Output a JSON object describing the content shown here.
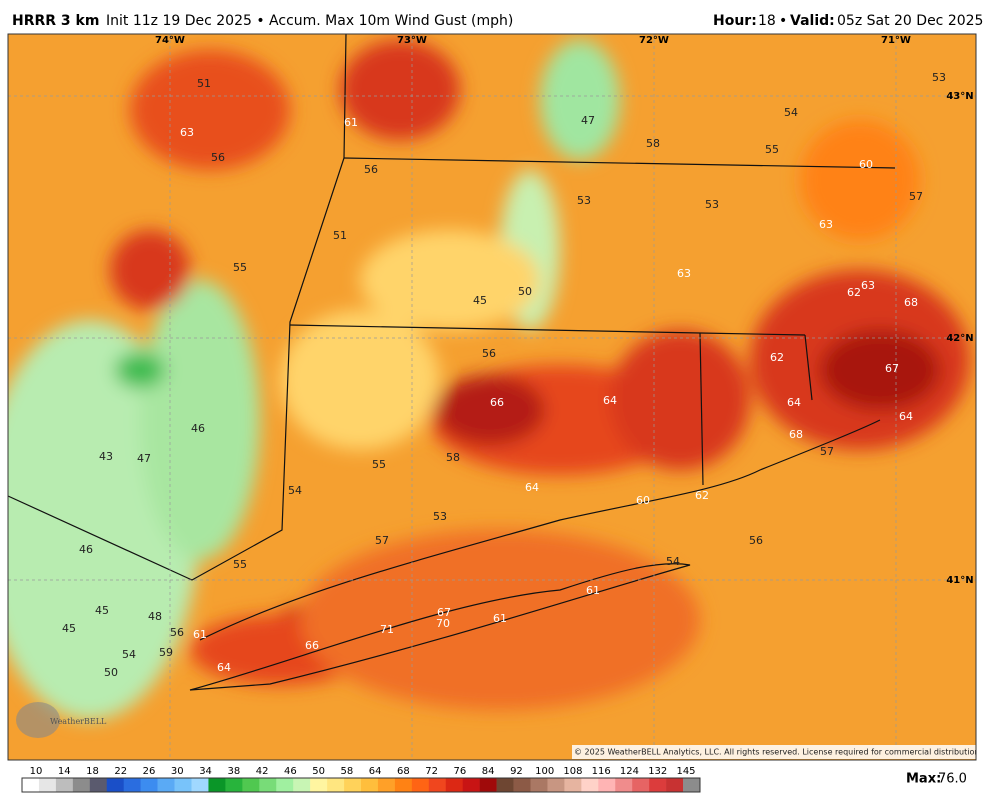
{
  "header": {
    "model": "HRRR 3 km",
    "description": "Init 11z 19 Dec 2025 • Accum. Max 10m Wind Gust (mph)",
    "hour_label": "Hour:",
    "hour": "18",
    "separator": "•",
    "valid_label": "Valid:",
    "valid": "05z Sat 20 Dec 2025"
  },
  "map": {
    "lon_labels": [
      "74°W",
      "73°W",
      "72°W",
      "71°W"
    ],
    "lat_labels": [
      "43°N",
      "42°N",
      "41°N"
    ],
    "stations": [
      51,
      63,
      56,
      61,
      56,
      51,
      55,
      47,
      58,
      54,
      55,
      60,
      53,
      57,
      53,
      53,
      63,
      63,
      62,
      63,
      68,
      45,
      50,
      56,
      62,
      67,
      66,
      64,
      64,
      64,
      68,
      57,
      46,
      43,
      47,
      58,
      55,
      54,
      64,
      60,
      62,
      53,
      57,
      56,
      46,
      55,
      54,
      61,
      45,
      48,
      45,
      67,
      70,
      61,
      71,
      56,
      61,
      66,
      59,
      54,
      64,
      50
    ],
    "copyright": "© 2025 WeatherBELL Analytics, LLC. All rights reserved. License required for commercial distribution.",
    "logo": "WeatherBELL"
  },
  "colorbar": {
    "labels": [
      "10",
      "14",
      "18",
      "22",
      "26",
      "30",
      "34",
      "38",
      "42",
      "46",
      "50",
      "58",
      "64",
      "68",
      "72",
      "76",
      "84",
      "92",
      "100",
      "108",
      "116",
      "124",
      "132",
      "145"
    ],
    "colors": [
      "#ffffff",
      "#e6e6e6",
      "#bdbdbd",
      "#8c8c8c",
      "#5a5a6e",
      "#1a4fc8",
      "#2a6de0",
      "#3c8cf0",
      "#5aaaf5",
      "#78c3fa",
      "#a0d8ff",
      "#0a9628",
      "#28b43c",
      "#50c850",
      "#78dc78",
      "#a0f0a0",
      "#c8f5b4",
      "#fff5a0",
      "#ffe680",
      "#ffd25a",
      "#ffbe3c",
      "#ffa028",
      "#ff8214",
      "#ff6414",
      "#f0461e",
      "#dc2814",
      "#c81414",
      "#a00a0a",
      "#6e4632",
      "#8c5a46",
      "#aa7864",
      "#c89682",
      "#e6b4a0",
      "#ffd2c8",
      "#ffb4b4",
      "#f08c8c",
      "#e66464",
      "#dc3c3c",
      "#c83232",
      "#8c8c8c"
    ],
    "max_label": "Max:",
    "max_value": "76.0"
  }
}
